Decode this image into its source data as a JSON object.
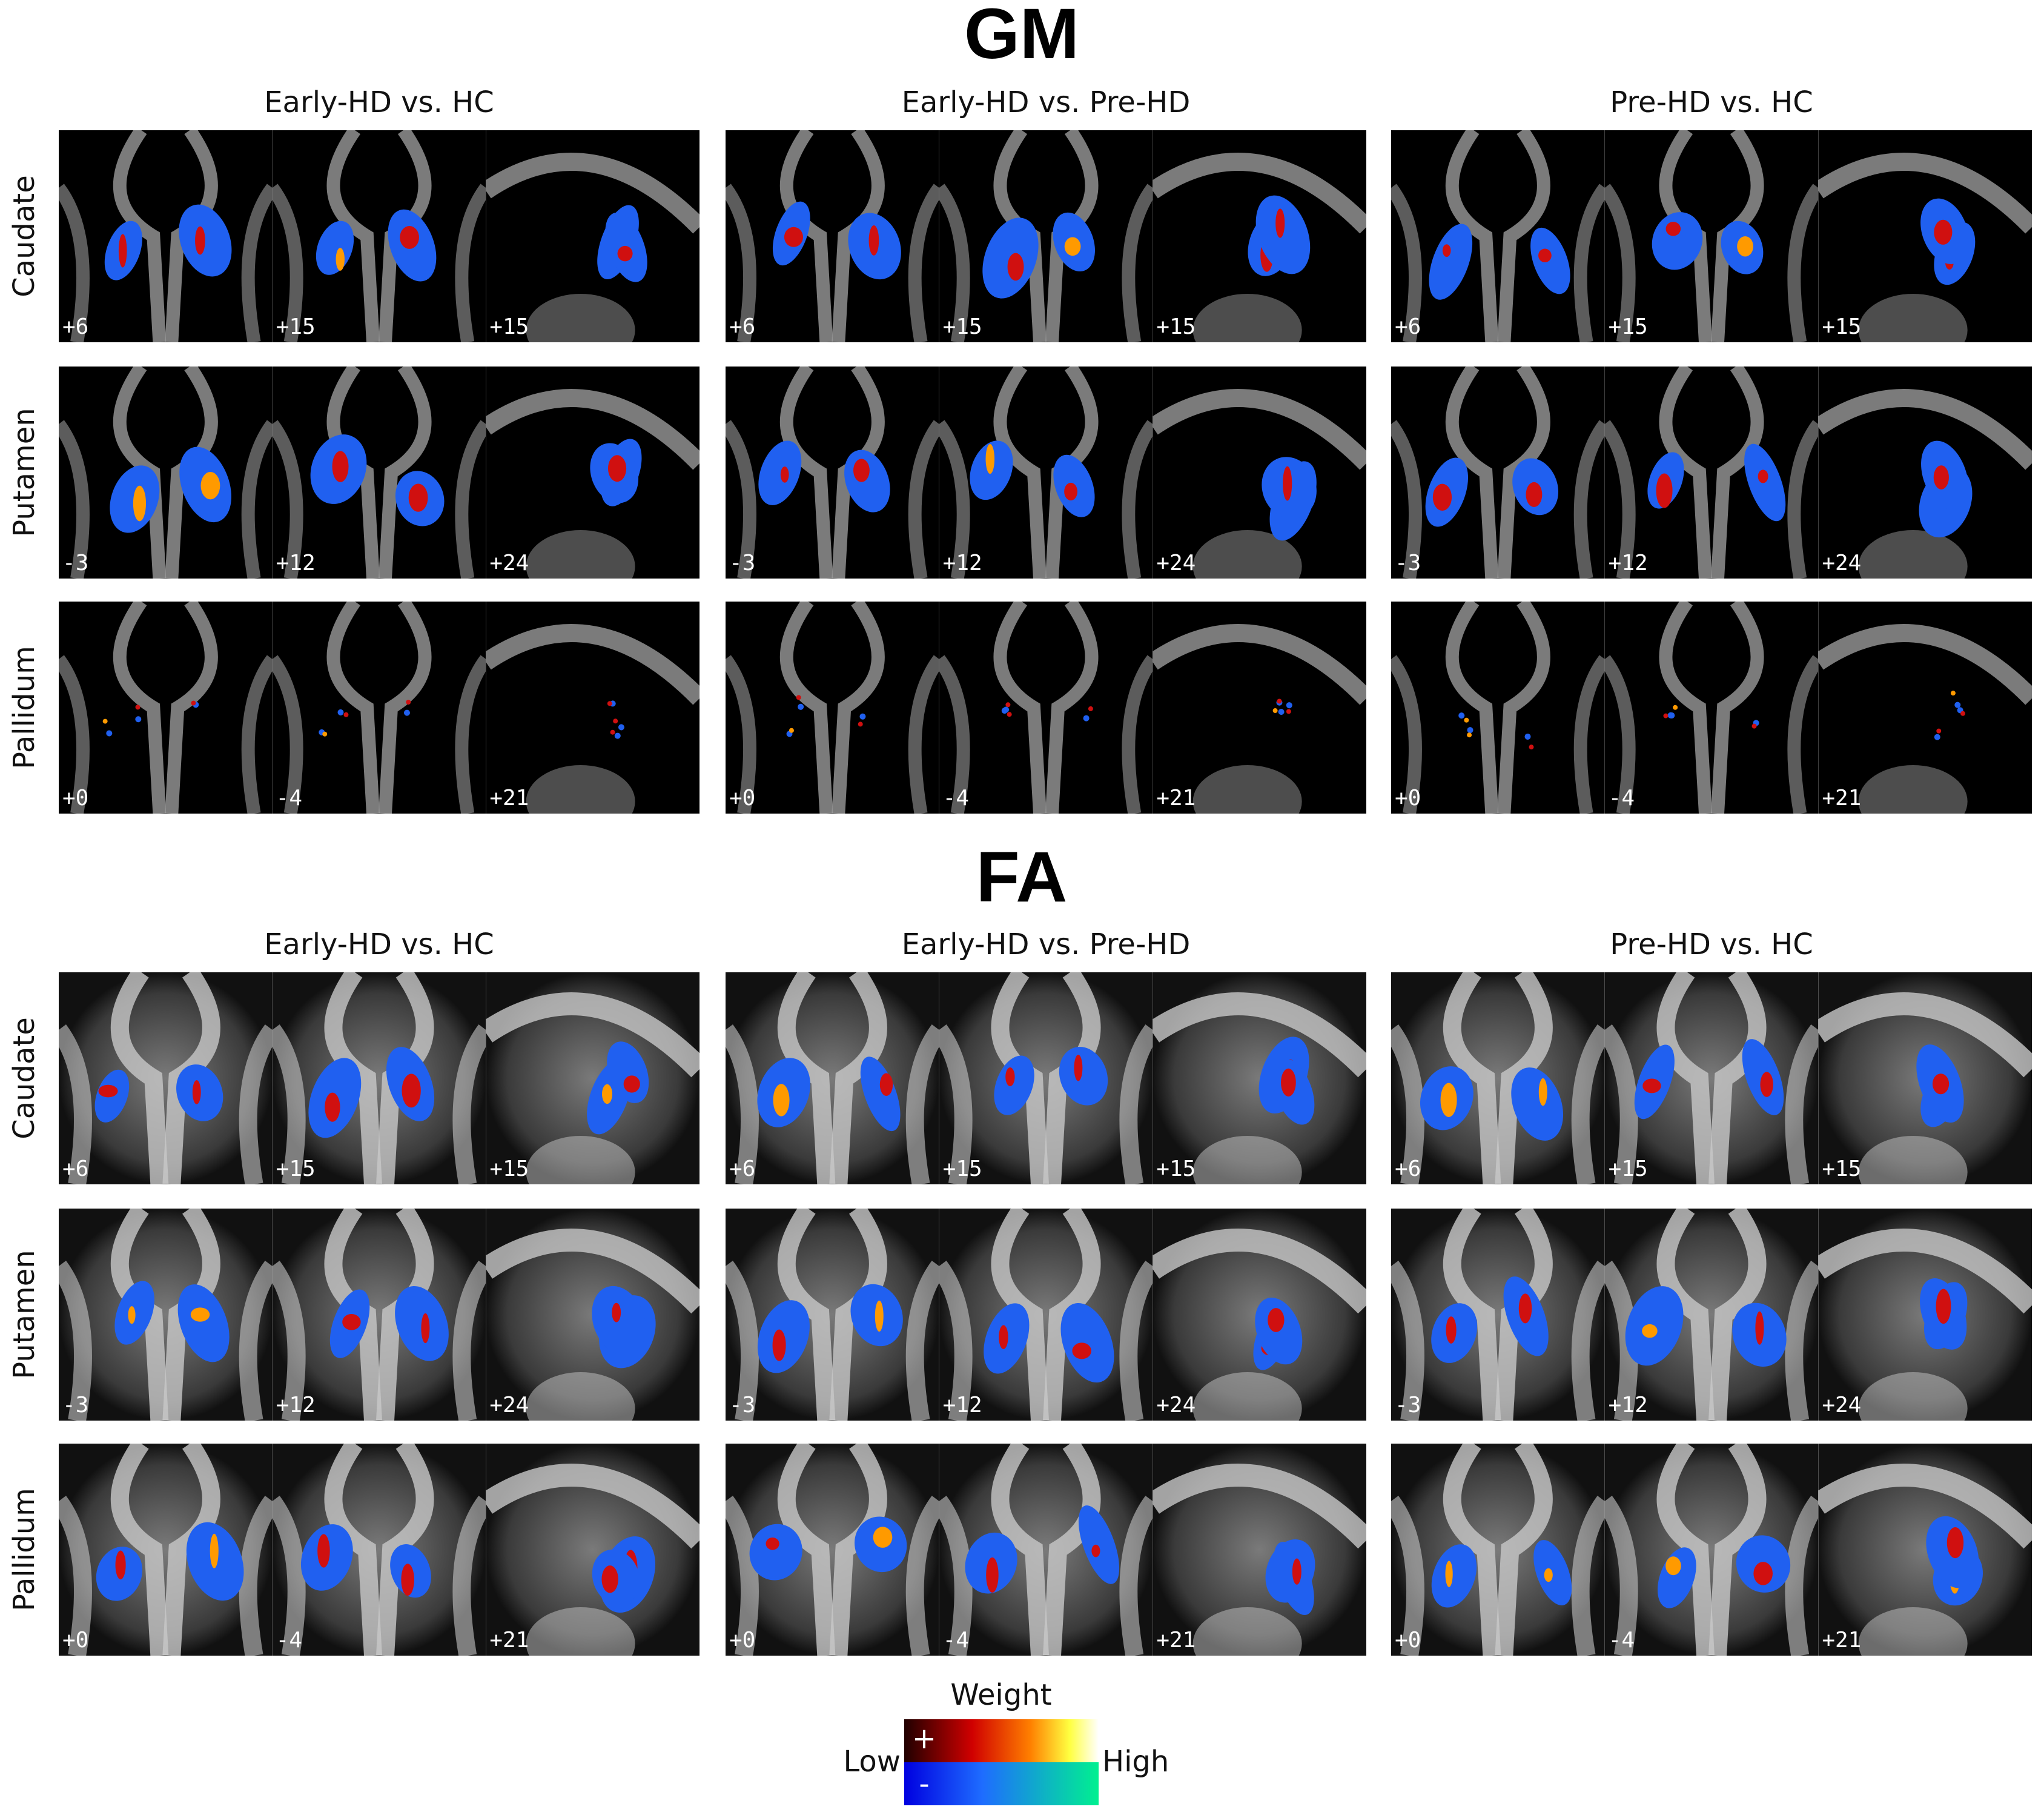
{
  "sections": [
    {
      "title": "GM",
      "columns": [
        "Early-HD vs. HC",
        "Early-HD vs. Pre-HD",
        "Pre-HD vs. HC"
      ],
      "rows": [
        {
          "label": "Caudate",
          "slices": [
            "+6",
            "+15",
            "+15"
          ]
        },
        {
          "label": "Putamen",
          "slices": [
            "-3",
            "+12",
            "+24"
          ]
        },
        {
          "label": "Pallidum",
          "slices": [
            "+0",
            "-4",
            "+21"
          ]
        }
      ]
    },
    {
      "title": "FA",
      "columns": [
        "Early-HD vs. HC",
        "Early-HD vs. Pre-HD",
        "Pre-HD vs. HC"
      ],
      "rows": [
        {
          "label": "Caudate",
          "slices": [
            "+6",
            "+15",
            "+15"
          ]
        },
        {
          "label": "Putamen",
          "slices": [
            "-3",
            "+12",
            "+24"
          ]
        },
        {
          "label": "Pallidum",
          "slices": [
            "+0",
            "-4",
            "+21"
          ]
        }
      ]
    }
  ],
  "colorbar": {
    "title": "Weight",
    "low": "Low",
    "high": "High",
    "positive": "+",
    "negative": "-"
  }
}
